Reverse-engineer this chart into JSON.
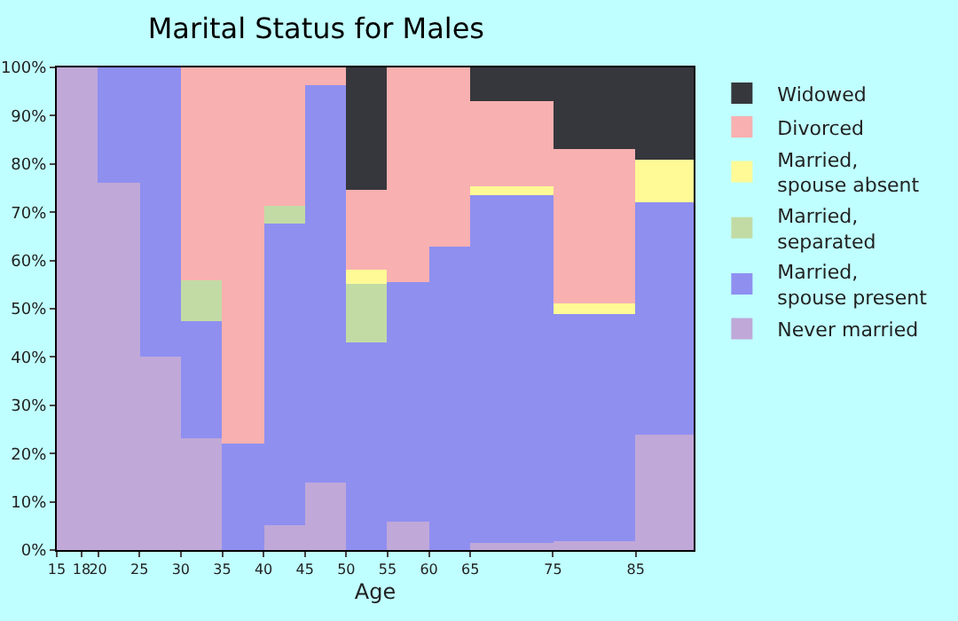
{
  "chart_data": {
    "type": "bar",
    "title": "Marital Status for Males",
    "xlabel": "Age",
    "stacked": true,
    "x": [
      16.5,
      19,
      22.5,
      27.5,
      32.5,
      37.5,
      42.5,
      47.5,
      52.5,
      57.5,
      62.5,
      70,
      80,
      88.5
    ],
    "xlim": [
      15,
      92
    ],
    "xticks": [
      15,
      18,
      20,
      25,
      30,
      35,
      40,
      45,
      50,
      55,
      60,
      65,
      75,
      85
    ],
    "ylim": [
      0,
      100
    ],
    "yticks": [
      {
        "value": 0,
        "label": "0%"
      },
      {
        "value": 10,
        "label": "10%"
      },
      {
        "value": 20,
        "label": "20%"
      },
      {
        "value": 30,
        "label": "30%"
      },
      {
        "value": 40,
        "label": "40%"
      },
      {
        "value": 50,
        "label": "50%"
      },
      {
        "value": 60,
        "label": "60%"
      },
      {
        "value": 70,
        "label": "70%"
      },
      {
        "value": 80,
        "label": "80%"
      },
      {
        "value": 90,
        "label": "90%"
      },
      {
        "value": 100,
        "label": "100%"
      }
    ],
    "legend": "right",
    "series": [
      {
        "name": "Never married",
        "color": "#c0a8d8",
        "values": [
          100,
          100,
          76,
          40,
          23,
          0,
          5,
          14,
          0,
          6,
          0,
          1.5,
          2,
          24
        ]
      },
      {
        "name": "Married, spouse present",
        "color": "#8f8ff0",
        "values": [
          0,
          0,
          24,
          60,
          24.5,
          22,
          62.5,
          82.5,
          43,
          49.5,
          63,
          72,
          47,
          48
        ]
      },
      {
        "name": "Married, separated",
        "color": "#c2dba5",
        "values": [
          0,
          0,
          0,
          0,
          8.5,
          0,
          4,
          0,
          12,
          0,
          0,
          0,
          0,
          0
        ]
      },
      {
        "name": "Married, spouse absent",
        "color": "#fffa96",
        "values": [
          0,
          0,
          0,
          0,
          0,
          0,
          0,
          0,
          3,
          0,
          0,
          2,
          2,
          9
        ]
      },
      {
        "name": "Divorced",
        "color": "#f8b0b0",
        "values": [
          0,
          0,
          0,
          0,
          44,
          78,
          28.5,
          3.5,
          16.5,
          44.5,
          37,
          17.5,
          32,
          0
        ]
      },
      {
        "name": "Widowed",
        "color": "#36373c",
        "values": [
          0,
          0,
          0,
          0,
          0,
          0,
          0,
          0,
          25.5,
          0,
          0,
          7,
          17,
          19
        ]
      }
    ]
  }
}
